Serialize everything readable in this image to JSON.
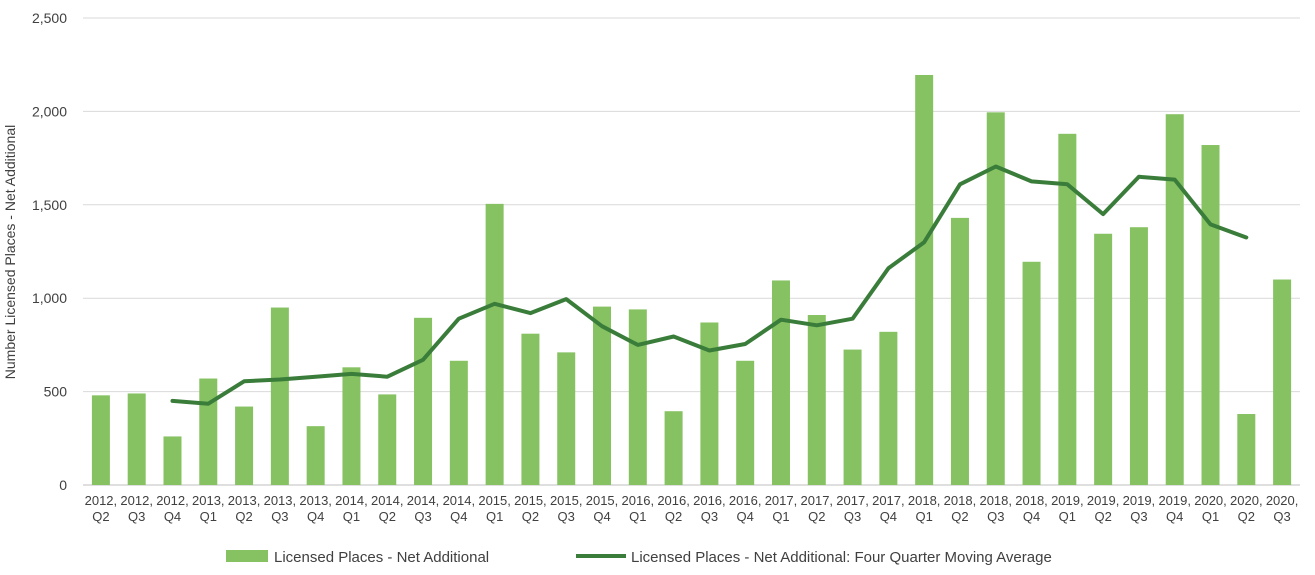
{
  "chart_data": {
    "type": "bar",
    "title": "",
    "xlabel": "",
    "ylabel": "Number Licensed Places - Net Additional",
    "ylim": [
      0,
      2500
    ],
    "yticks": [
      0,
      500,
      1000,
      1500,
      2000,
      2500
    ],
    "ytick_labels": [
      "0",
      "500",
      "1,000",
      "1,500",
      "2,000",
      "2,500"
    ],
    "grid": "horizontal",
    "legend_position": "bottom",
    "colors": {
      "bar": "#86c262",
      "line": "#3a7d3a",
      "grid": "#d9d9d9",
      "axis": "#bfbfbf"
    },
    "categories": [
      "2012, Q2",
      "2012, Q3",
      "2012, Q4",
      "2013, Q1",
      "2013, Q2",
      "2013, Q3",
      "2013, Q4",
      "2014, Q1",
      "2014, Q2",
      "2014, Q3",
      "2014, Q4",
      "2015, Q1",
      "2015, Q2",
      "2015, Q3",
      "2015, Q4",
      "2016, Q1",
      "2016, Q2",
      "2016, Q3",
      "2016, Q4",
      "2017, Q1",
      "2017, Q2",
      "2017, Q3",
      "2017, Q4",
      "2018, Q1",
      "2018, Q2",
      "2018, Q3",
      "2018, Q4",
      "2019, Q1",
      "2019, Q2",
      "2019, Q3",
      "2019, Q4",
      "2020, Q1",
      "2020, Q2",
      "2020, Q3"
    ],
    "series": [
      {
        "name": "Licensed Places - Net Additional",
        "type": "bar",
        "values": [
          480,
          490,
          260,
          570,
          420,
          950,
          315,
          630,
          485,
          895,
          665,
          1505,
          810,
          710,
          955,
          940,
          395,
          870,
          665,
          1095,
          910,
          725,
          820,
          2195,
          1430,
          1995,
          1195,
          1880,
          1345,
          1380,
          1985,
          1820,
          380,
          1100
        ]
      },
      {
        "name": "Licensed Places - Net Additional: Four Quarter Moving Average",
        "type": "line",
        "values": [
          null,
          null,
          450,
          435,
          555,
          565,
          580,
          595,
          580,
          670,
          890,
          970,
          920,
          995,
          850,
          750,
          795,
          720,
          755,
          885,
          855,
          890,
          1160,
          1300,
          1610,
          1705,
          1625,
          1610,
          1450,
          1650,
          1635,
          1395,
          1325,
          null
        ]
      }
    ]
  }
}
